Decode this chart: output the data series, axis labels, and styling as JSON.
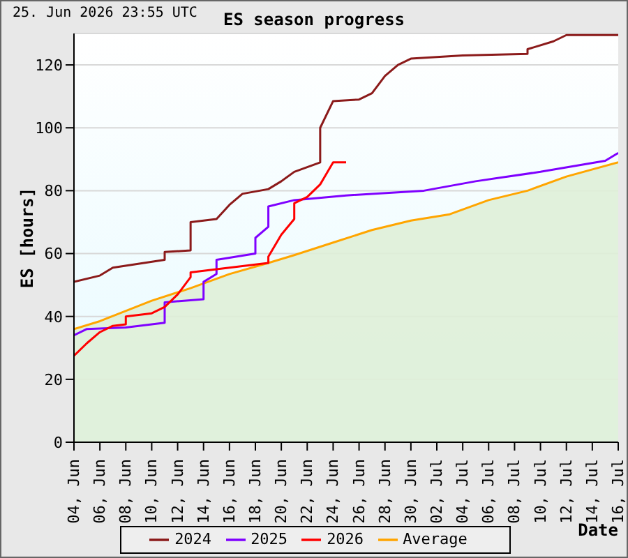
{
  "chart_data": {
    "type": "line",
    "title": "ES season progress",
    "xlabel": "Date",
    "ylabel": "ES [hours]",
    "annotations": [
      "25. Jun 2026 23:55 UTC"
    ],
    "xlim": [
      "--06-04",
      "--07-16"
    ],
    "xticks": [
      {
        "value": "--06-04",
        "label": "04, Jun"
      },
      {
        "value": "--06-06",
        "label": "06, Jun"
      },
      {
        "value": "--06-08",
        "label": "08, Jun"
      },
      {
        "value": "--06-10",
        "label": "10, Jun"
      },
      {
        "value": "--06-12",
        "label": "12, Jun"
      },
      {
        "value": "--06-14",
        "label": "14, Jun"
      },
      {
        "value": "--06-16",
        "label": "16, Jun"
      },
      {
        "value": "--06-18",
        "label": "18, Jun"
      },
      {
        "value": "--06-20",
        "label": "20, Jun"
      },
      {
        "value": "--06-22",
        "label": "22, Jun"
      },
      {
        "value": "--06-24",
        "label": "24, Jun"
      },
      {
        "value": "--06-26",
        "label": "26, Jun"
      },
      {
        "value": "--06-28",
        "label": "28, Jun"
      },
      {
        "value": "--06-30",
        "label": "30, Jun"
      },
      {
        "value": "--07-02",
        "label": "02, Jul"
      },
      {
        "value": "--07-04",
        "label": "04, Jul"
      },
      {
        "value": "--07-06",
        "label": "06, Jul"
      },
      {
        "value": "--07-08",
        "label": "08, Jul"
      },
      {
        "value": "--07-10",
        "label": "10, Jul"
      },
      {
        "value": "--07-12",
        "label": "12, Jul"
      },
      {
        "value": "--07-14",
        "label": "14, Jul"
      },
      {
        "value": "--07-16",
        "label": "16, Jul"
      }
    ],
    "ylim": [
      0,
      130
    ],
    "yticks": [
      0,
      20,
      40,
      60,
      80,
      100,
      120
    ],
    "grid": "y",
    "legend": "bottom",
    "marker": "none",
    "line_style": "solid",
    "series": [
      {
        "name": "2024",
        "color": "#8b1a1a",
        "x": [
          "--06-04",
          "--06-06",
          "--06-07",
          "--06-11",
          "--06-11",
          "--06-13",
          "--06-13",
          "--06-15",
          "--06-16",
          "--06-17",
          "--06-19",
          "--06-20",
          "--06-21",
          "--06-23",
          "--06-23",
          "--06-24",
          "--06-26",
          "--06-27",
          "--06-28",
          "--06-29",
          "--06-30",
          "--07-04",
          "--07-09",
          "--07-09",
          "--07-11",
          "--07-12",
          "--07-16"
        ],
        "values": [
          51,
          53,
          55.5,
          58,
          60.5,
          61,
          70,
          71,
          75.5,
          79,
          80.5,
          83,
          86,
          89,
          100,
          108.5,
          109,
          111,
          116.5,
          120,
          122,
          123,
          123.5,
          125,
          127.5,
          129.5,
          129.5
        ]
      },
      {
        "name": "2025",
        "color": "#7f00ff",
        "x": [
          "--06-04",
          "--06-05",
          "--06-08",
          "--06-11",
          "--06-11",
          "--06-14",
          "--06-14",
          "--06-15",
          "--06-15",
          "--06-18",
          "--06-18",
          "--06-19",
          "--06-19",
          "--06-21",
          "--06-25",
          "--07-01",
          "--07-05",
          "--07-10",
          "--07-15",
          "--07-16"
        ],
        "values": [
          34,
          36,
          36.5,
          38,
          44.5,
          45.5,
          51,
          53.5,
          58,
          60,
          65,
          68.5,
          75,
          77,
          78.5,
          80,
          83,
          86,
          89.5,
          92
        ]
      },
      {
        "name": "2026",
        "color": "#ff0000",
        "x": [
          "--06-04",
          "--06-05",
          "--06-06",
          "--06-07",
          "--06-08",
          "--06-08",
          "--06-10",
          "--06-11",
          "--06-12",
          "--06-13",
          "--06-13",
          "--06-15",
          "--06-19",
          "--06-19",
          "--06-20",
          "--06-21",
          "--06-21",
          "--06-22",
          "--06-23",
          "--06-24",
          "--06-25"
        ],
        "values": [
          27.5,
          31.5,
          35,
          37,
          37.5,
          40,
          41,
          43,
          47,
          52.5,
          54,
          55,
          57,
          59,
          66,
          71,
          76,
          78,
          82,
          89,
          89
        ]
      },
      {
        "name": "Average",
        "type": "area",
        "color": "#ffa500",
        "x": [
          "--06-04",
          "--06-06",
          "--06-10",
          "--06-13",
          "--06-16",
          "--06-19",
          "--06-21",
          "--06-24",
          "--06-27",
          "--06-30",
          "--07-03",
          "--07-06",
          "--07-09",
          "--07-12",
          "--07-16"
        ],
        "values": [
          36,
          38.5,
          45,
          49,
          53.5,
          57,
          59.5,
          63.5,
          67.5,
          70.5,
          72.5,
          77,
          80,
          84.5,
          89
        ]
      }
    ]
  }
}
